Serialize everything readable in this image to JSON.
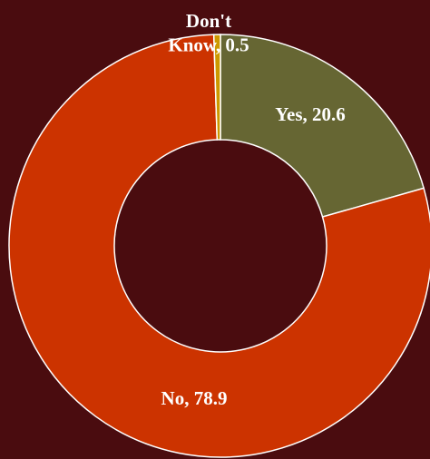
{
  "chart_data": {
    "type": "pie",
    "donut": true,
    "title": "",
    "legend": "none",
    "categories": [
      "Yes",
      "No",
      "Don't Know"
    ],
    "values": [
      20.6,
      78.9,
      0.5
    ],
    "colors": [
      "#666633",
      "#cc3300",
      "#cc9900"
    ],
    "labels": [
      "Yes, 20.6",
      "No, 78.9",
      "Don't Know, 0.5"
    ],
    "label_lines": [
      [
        "Yes, 20.6"
      ],
      [
        "No, 78.9"
      ],
      [
        "Don't",
        "Know, 0.5"
      ]
    ]
  },
  "background": "#4a0c0f"
}
